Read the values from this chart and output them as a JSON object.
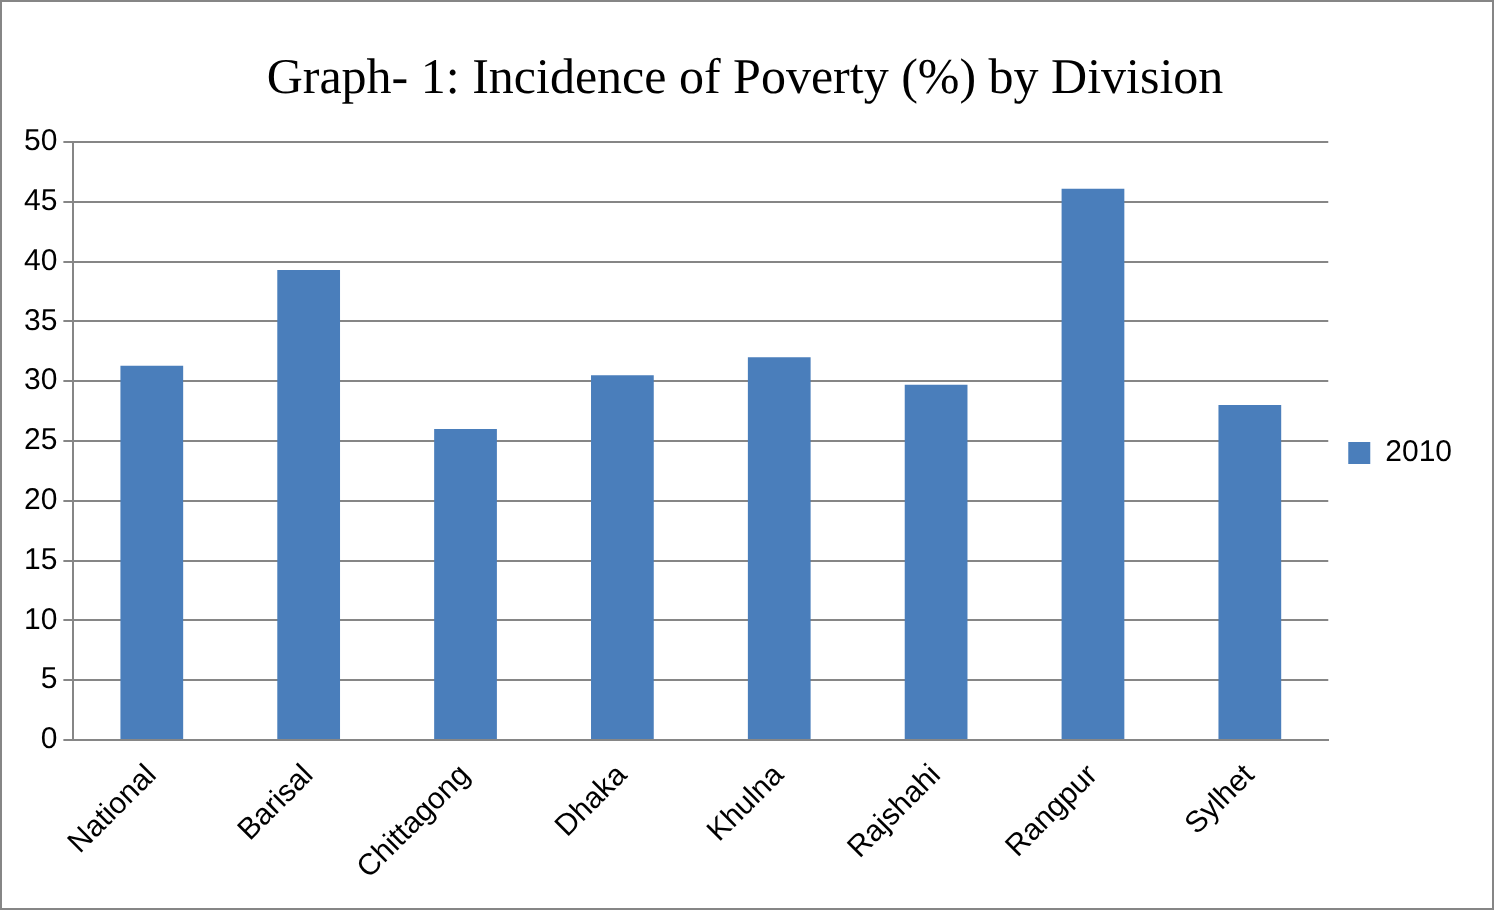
{
  "chart_data": {
    "type": "bar",
    "title": "Graph- 1: Incidence of Poverty (%) by Division",
    "categories": [
      "National",
      "Barisal",
      "Chittagong",
      "Dhaka",
      "Khulna",
      "Rajshahi",
      "Rangpur",
      "Sylhet"
    ],
    "series": [
      {
        "name": "2010",
        "color": "#4a7ebb",
        "values": [
          31.3,
          39.3,
          26,
          30.5,
          32,
          29.7,
          46.1,
          28
        ]
      }
    ],
    "ylim": [
      0,
      50
    ],
    "yticks": [
      0,
      5,
      10,
      15,
      20,
      25,
      30,
      35,
      40,
      45,
      50
    ],
    "grid": "y",
    "legend": "right"
  }
}
